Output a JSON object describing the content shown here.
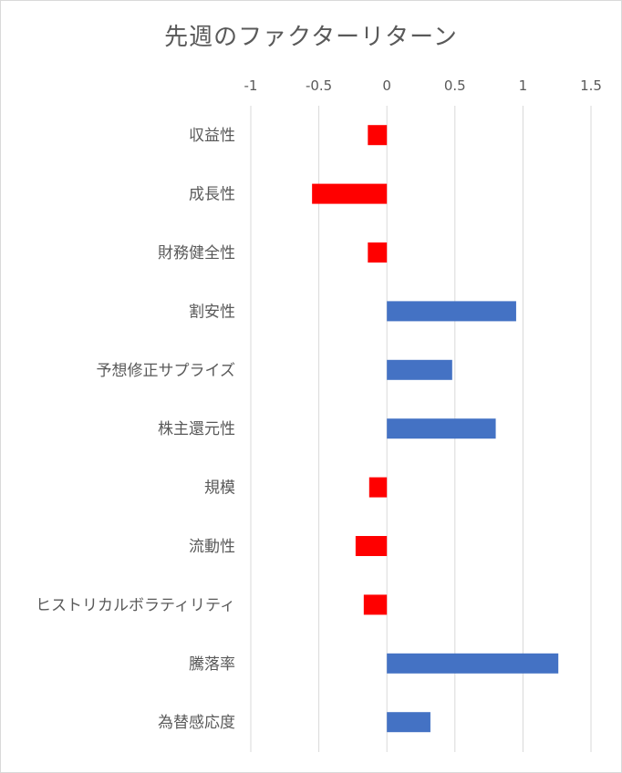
{
  "chart_data": {
    "type": "bar",
    "orientation": "horizontal",
    "title": "先週のファクターリターン",
    "xlabel": "",
    "ylabel": "",
    "xlim": [
      -1,
      1.5
    ],
    "x_ticks": [
      "-1",
      "-0.5",
      "0",
      "0.5",
      "1",
      "1.5"
    ],
    "x_tick_values": [
      -1,
      -0.5,
      0,
      0.5,
      1,
      1.5
    ],
    "categories": [
      "収益性",
      "成長性",
      "財務健全性",
      "割安性",
      "予想修正サプライズ",
      "株主還元性",
      "規模",
      "流動性",
      "ヒストリカルボラティリティ",
      "騰落率",
      "為替感応度"
    ],
    "values": [
      -0.14,
      -0.55,
      -0.14,
      0.95,
      0.48,
      0.8,
      -0.13,
      -0.23,
      -0.17,
      1.26,
      0.32
    ],
    "colors": {
      "positive": "#4472C4",
      "negative": "#FF0000",
      "grid": "#d9d9d9"
    },
    "grid": true,
    "axis_position": "top",
    "legend": "none"
  }
}
